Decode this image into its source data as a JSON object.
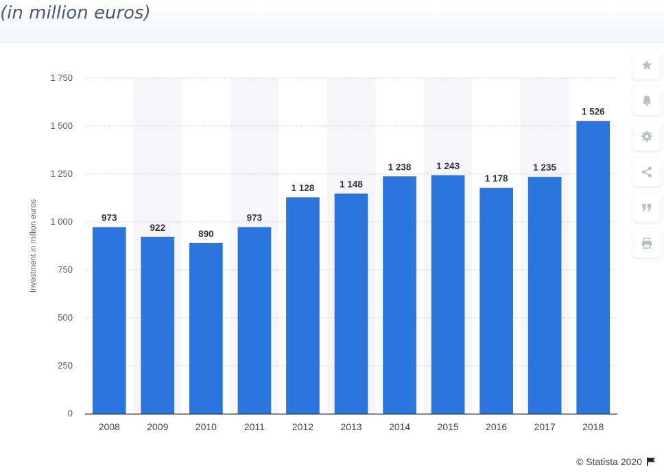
{
  "header": {
    "subtitle": "(in million euros)"
  },
  "chart_data": {
    "type": "bar",
    "categories": [
      "2008",
      "2009",
      "2010",
      "2011",
      "2012",
      "2013",
      "2014",
      "2015",
      "2016",
      "2017",
      "2018"
    ],
    "values": [
      973,
      922,
      890,
      973,
      1128,
      1148,
      1238,
      1243,
      1178,
      1235,
      1526
    ],
    "value_labels": [
      "973",
      "922",
      "890",
      "973",
      "1 128",
      "1 148",
      "1 238",
      "1 243",
      "1 178",
      "1 235",
      "1 526"
    ],
    "ylabel": "Investment in million euros",
    "xlabel": "",
    "ylim": [
      0,
      1750
    ],
    "yticks": [
      0,
      250,
      500,
      750,
      1000,
      1250,
      1500,
      1750
    ],
    "ytick_labels": [
      "0",
      "250",
      "500",
      "750",
      "1 000",
      "1 250",
      "1 500",
      "1 750"
    ],
    "grid": true,
    "bar_color": "#2a75de",
    "band_color": "#f6f6f8"
  },
  "toolbar": {
    "items": [
      {
        "name": "star-icon",
        "label": "Favorite"
      },
      {
        "name": "bell-icon",
        "label": "Notification"
      },
      {
        "name": "gear-icon",
        "label": "Settings"
      },
      {
        "name": "share-icon",
        "label": "Share"
      },
      {
        "name": "quote-icon",
        "label": "Cite"
      },
      {
        "name": "print-icon",
        "label": "Print"
      }
    ]
  },
  "footer": {
    "credit": "© Statista 2020"
  },
  "colors": {
    "icon": "#b9bec8",
    "text": "#444444",
    "subtitle": "#4a5a70"
  }
}
